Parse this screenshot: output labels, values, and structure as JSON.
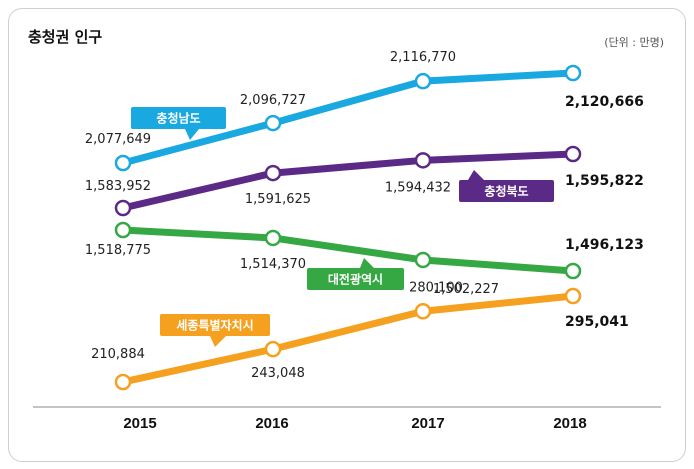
{
  "chart_data": {
    "type": "line",
    "title": "충청권 인구",
    "unit_note": "(단위 : 만명)",
    "categories": [
      "2015",
      "2016",
      "2017",
      "2018"
    ],
    "series": [
      {
        "name": "충청남도",
        "color": "#1aa8e0",
        "values": [
          2077649,
          2096727,
          2116770,
          2120666
        ],
        "labels": [
          "2,077,649",
          "2,096,727",
          "2,116,770",
          "2,120,666"
        ]
      },
      {
        "name": "충청북도",
        "color": "#5b2a86",
        "values": [
          1583952,
          1591625,
          1594432,
          1595822
        ],
        "labels": [
          "1,583,952",
          "1,591,625",
          "1,594,432",
          "1,595,822"
        ]
      },
      {
        "name": "대전광역시",
        "color": "#35a844",
        "values": [
          1518775,
          1514370,
          1502227,
          1496123
        ],
        "labels": [
          "1,518,775",
          "1,514,370",
          "1,502,227",
          "1,496,123"
        ]
      },
      {
        "name": "세종특별자치시",
        "color": "#f5a01f",
        "values": [
          210884,
          243048,
          280100,
          295041
        ],
        "labels": [
          "210,884",
          "243,048",
          "280,100",
          "295,041"
        ]
      }
    ]
  }
}
